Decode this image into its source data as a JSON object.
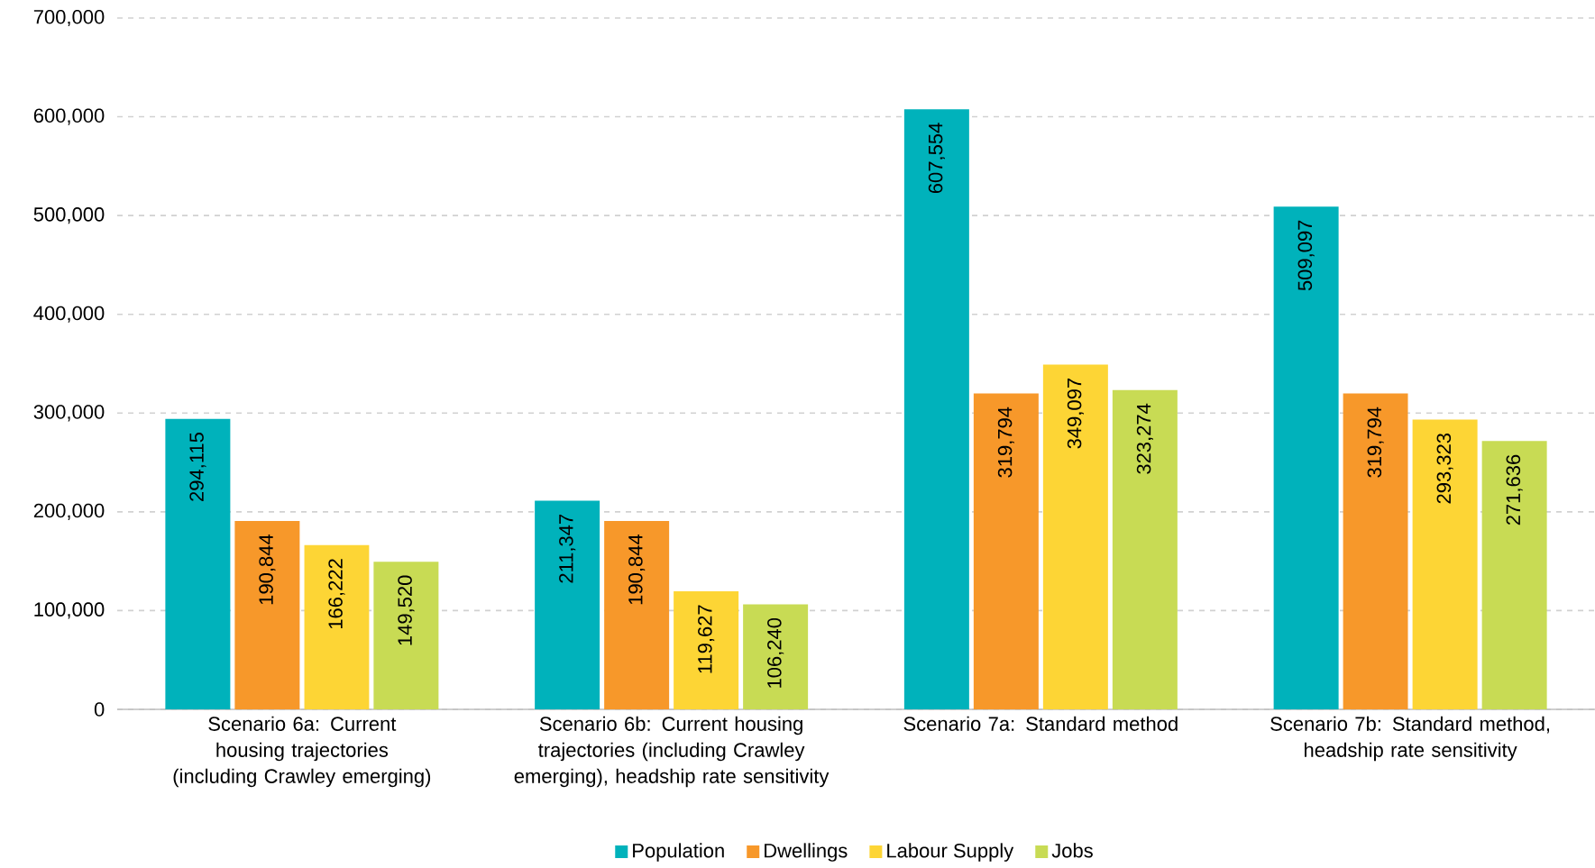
{
  "chart_data": {
    "type": "bar",
    "categories": [
      "Scenario 6a: Current housing trajectories (including Crawley emerging)",
      "Scenario 6b: Current housing trajectories (including Crawley emerging), headship rate sensitivity",
      "Scenario 7a: Standard method",
      "Scenario 7b: Standard method, headship rate sensitivity"
    ],
    "series": [
      {
        "name": "Population",
        "color": "#00b2bb",
        "values": [
          294115,
          211347,
          607554,
          509097
        ],
        "value_labels": [
          "294,115",
          "211,347",
          "607,554",
          "509,097"
        ]
      },
      {
        "name": "Dwellings",
        "color": "#f7982a",
        "values": [
          190844,
          190844,
          319794,
          319794
        ],
        "value_labels": [
          "190,844",
          "190,844",
          "319,794",
          "319,794"
        ]
      },
      {
        "name": "Labour Supply",
        "color": "#fdd535",
        "values": [
          166222,
          119627,
          349097,
          293323
        ],
        "value_labels": [
          "166,222",
          "119,627",
          "349,097",
          "293,323"
        ]
      },
      {
        "name": "Jobs",
        "color": "#c8db54",
        "values": [
          149520,
          106240,
          323274,
          271636
        ],
        "value_labels": [
          "149,520",
          "106,240",
          "323,274",
          "271,636"
        ]
      }
    ],
    "ylim": [
      0,
      700000
    ],
    "yticks": [
      {
        "value": 0,
        "label": "0"
      },
      {
        "value": 100000,
        "label": "100,000"
      },
      {
        "value": 200000,
        "label": "200,000"
      },
      {
        "value": 300000,
        "label": "300,000"
      },
      {
        "value": 400000,
        "label": "400,000"
      },
      {
        "value": 500000,
        "label": "500,000"
      },
      {
        "value": 600000,
        "label": "600,000"
      },
      {
        "value": 700000,
        "label": "700,000"
      }
    ],
    "grid": "y",
    "legend": "bottom"
  }
}
